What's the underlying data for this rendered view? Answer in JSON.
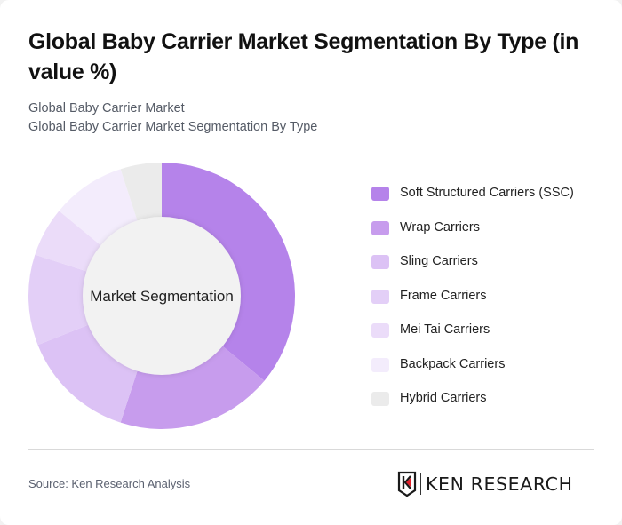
{
  "title": "Global Baby Carrier Market Segmentation By Type (in value %)",
  "subtitle_lines": [
    "Global Baby Carrier Market",
    "Global Baby Carrier Market Segmentation By Type"
  ],
  "center_label": "Market Segmentation",
  "source": "Source: Ken Research Analysis",
  "logo": {
    "text": "KEN RESEARCH",
    "accent": "#e0202a"
  },
  "colors": [
    "#b583ea",
    "#c79ced",
    "#dcc2f5",
    "#e3cff7",
    "#ebdcf9",
    "#f3ecfc",
    "#ebebeb"
  ],
  "chart_data": {
    "type": "pie",
    "subtype": "donut",
    "title": "Global Baby Carrier Market Segmentation By Type (in value %)",
    "center_text": "Market Segmentation",
    "legend_position": "right",
    "categories": [
      "Soft Structured Carriers (SSC)",
      "Wrap Carriers",
      "Sling Carriers",
      "Frame Carriers",
      "Mei Tai Carriers",
      "Backpack Carriers",
      "Hybrid Carriers"
    ],
    "values": [
      36,
      19,
      14,
      11,
      6,
      9,
      5
    ],
    "unit": "%",
    "start_angle_deg": 0,
    "direction": "clockwise"
  }
}
